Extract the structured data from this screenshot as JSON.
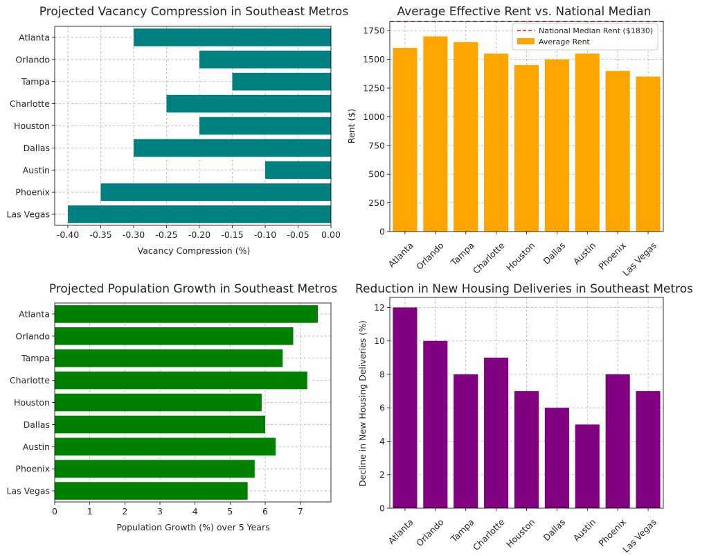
{
  "chart_data": [
    {
      "type": "bar",
      "orientation": "horizontal",
      "title": "Projected Vacancy Compression in Southeast Metros",
      "xlabel": "Vacancy Compression (%)",
      "ylabel": "",
      "categories": [
        "Atlanta",
        "Orlando",
        "Tampa",
        "Charlotte",
        "Houston",
        "Dallas",
        "Austin",
        "Phoenix",
        "Las Vegas"
      ],
      "values": [
        -0.3,
        -0.2,
        -0.15,
        -0.25,
        -0.2,
        -0.3,
        -0.1,
        -0.35,
        -0.4
      ],
      "xlim": [
        -0.42,
        0.0
      ],
      "xticks": [
        -0.4,
        -0.35,
        -0.3,
        -0.25,
        -0.2,
        -0.15,
        -0.1,
        -0.05,
        0.0
      ],
      "xtick_labels": [
        "-0.40",
        "-0.35",
        "-0.30",
        "-0.25",
        "-0.20",
        "-0.15",
        "-0.10",
        "-0.05",
        "0.00"
      ],
      "color": "#008080",
      "grid": true
    },
    {
      "type": "bar",
      "title": "Average Effective Rent vs. National Median",
      "xlabel": "",
      "ylabel": "Rent ($)",
      "categories": [
        "Atlanta",
        "Orlando",
        "Tampa",
        "Charlotte",
        "Houston",
        "Dallas",
        "Austin",
        "Phoenix",
        "Las Vegas"
      ],
      "values": [
        1600,
        1700,
        1650,
        1550,
        1450,
        1500,
        1550,
        1400,
        1350
      ],
      "series": [
        {
          "name": "Average Rent",
          "values": [
            1600,
            1700,
            1650,
            1550,
            1450,
            1500,
            1550,
            1400,
            1350
          ]
        }
      ],
      "reference_line": {
        "value": 1830,
        "label": "National Median Rent ($1830)",
        "color": "#ff0000",
        "style": "dashed"
      },
      "ylim": [
        0,
        1830
      ],
      "yticks": [
        0,
        250,
        500,
        750,
        1000,
        1250,
        1500,
        1750
      ],
      "color": "#ffa500",
      "legend": "top-right",
      "grid": true
    },
    {
      "type": "bar",
      "orientation": "horizontal",
      "title": "Projected Population Growth in Southeast Metros",
      "xlabel": "Population Growth (%) over 5 Years",
      "ylabel": "",
      "categories": [
        "Atlanta",
        "Orlando",
        "Tampa",
        "Charlotte",
        "Houston",
        "Dallas",
        "Austin",
        "Phoenix",
        "Las Vegas"
      ],
      "values": [
        7.5,
        6.8,
        6.5,
        7.2,
        5.9,
        6.0,
        6.3,
        5.7,
        5.5
      ],
      "xlim": [
        0,
        7.875
      ],
      "xticks": [
        0,
        1,
        2,
        3,
        4,
        5,
        6,
        7
      ],
      "color": "#008000",
      "grid": true
    },
    {
      "type": "bar",
      "title": "Reduction in New Housing Deliveries in Southeast Metros",
      "xlabel": "",
      "ylabel": "Decline in New Housing Deliveries (%)",
      "categories": [
        "Atlanta",
        "Orlando",
        "Tampa",
        "Charlotte",
        "Houston",
        "Dallas",
        "Austin",
        "Phoenix",
        "Las Vegas"
      ],
      "values": [
        12,
        10,
        8,
        9,
        7,
        6,
        5,
        8,
        7
      ],
      "ylim": [
        0,
        12.6
      ],
      "yticks": [
        0,
        2,
        4,
        6,
        8,
        10,
        12
      ],
      "color": "#800080",
      "grid": true
    }
  ]
}
